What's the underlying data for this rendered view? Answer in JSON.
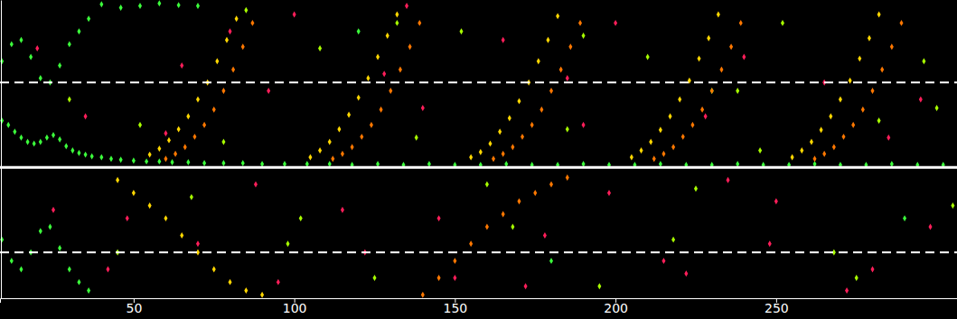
{
  "chart_data": {
    "type": "scatter",
    "xlim": [
      8.4,
      306.3
    ],
    "ylim": [
      -1.54,
      1.97
    ],
    "xticks": [
      50,
      100,
      150,
      200,
      250
    ],
    "yticks": [],
    "tick_labels": "x",
    "series": [
      {
        "color": "#3cff3c",
        "marker": "diamond",
        "x": [
          9,
          11,
          13,
          15,
          17,
          19,
          21,
          23,
          25,
          27,
          29,
          31,
          33,
          35,
          37,
          40,
          43,
          46,
          50,
          54,
          58,
          62,
          67,
          72,
          78,
          84,
          90,
          97,
          104,
          111,
          118,
          126,
          134,
          142,
          150,
          158,
          166,
          174,
          182,
          190,
          198,
          206,
          214,
          222,
          230,
          238,
          246,
          254,
          262,
          270,
          278,
          286,
          294,
          302,
          9,
          12,
          15,
          18,
          21,
          24,
          27,
          30,
          33,
          36,
          9,
          12,
          15,
          18,
          21,
          24,
          27,
          30,
          33,
          36,
          40,
          46,
          52,
          58,
          64,
          70,
          120,
          180,
          230,
          290
        ],
        "values": [
          0.55,
          0.5,
          0.42,
          0.35,
          0.3,
          0.28,
          0.3,
          0.35,
          0.38,
          0.33,
          0.25,
          0.2,
          0.17,
          0.15,
          0.13,
          0.12,
          0.1,
          0.09,
          0.08,
          0.07,
          0.07,
          0.06,
          0.06,
          0.05,
          0.05,
          0.05,
          0.04,
          0.04,
          0.04,
          0.04,
          0.03,
          0.04,
          0.03,
          0.04,
          0.03,
          0.03,
          0.04,
          0.03,
          0.03,
          0.04,
          0.03,
          0.03,
          0.04,
          0.03,
          0.03,
          0.04,
          0.03,
          0.03,
          0.04,
          0.03,
          0.03,
          0.04,
          0.03,
          0.03,
          1.25,
          1.45,
          1.5,
          1.3,
          1.05,
          1.0,
          1.2,
          1.45,
          1.6,
          1.75,
          -0.85,
          -1.1,
          -1.2,
          -1.0,
          -0.75,
          -0.7,
          -0.95,
          -1.2,
          -1.35,
          -1.45,
          1.92,
          1.88,
          1.9,
          1.93,
          1.91,
          1.9,
          1.6,
          -1.1,
          0.9,
          -0.6
        ]
      },
      {
        "color": "#ffd700",
        "marker": "diamond",
        "x": [
          55,
          58,
          61,
          64,
          67,
          70,
          73,
          76,
          79,
          82,
          105,
          108,
          111,
          114,
          117,
          120,
          123,
          126,
          129,
          132,
          155,
          158,
          161,
          164,
          167,
          170,
          173,
          176,
          179,
          182,
          205,
          208,
          211,
          214,
          217,
          220,
          223,
          226,
          229,
          232,
          255,
          258,
          261,
          264,
          267,
          270,
          273,
          276,
          279,
          282,
          45,
          50,
          55,
          60,
          65,
          70,
          75,
          80,
          85,
          90
        ],
        "values": [
          0.15,
          0.22,
          0.32,
          0.45,
          0.6,
          0.8,
          1.0,
          1.25,
          1.5,
          1.75,
          0.12,
          0.2,
          0.3,
          0.45,
          0.62,
          0.82,
          1.05,
          1.3,
          1.55,
          1.8,
          0.12,
          0.18,
          0.28,
          0.42,
          0.58,
          0.78,
          1.0,
          1.25,
          1.5,
          1.78,
          0.12,
          0.2,
          0.3,
          0.44,
          0.6,
          0.8,
          1.02,
          1.28,
          1.52,
          1.8,
          0.12,
          0.2,
          0.3,
          0.44,
          0.6,
          0.8,
          1.02,
          1.28,
          1.52,
          1.8,
          -0.15,
          -0.3,
          -0.45,
          -0.6,
          -0.8,
          -1.0,
          -1.2,
          -1.35,
          -1.45,
          -1.5
        ]
      },
      {
        "color": "#ff7800",
        "marker": "diamond",
        "x": [
          60,
          63,
          66,
          69,
          72,
          75,
          78,
          81,
          84,
          87,
          112,
          115,
          118,
          121,
          124,
          127,
          130,
          133,
          136,
          139,
          162,
          165,
          168,
          171,
          174,
          177,
          180,
          183,
          186,
          189,
          212,
          215,
          218,
          221,
          224,
          227,
          230,
          233,
          236,
          239,
          262,
          265,
          268,
          271,
          274,
          277,
          280,
          283,
          286,
          289,
          140,
          145,
          150,
          155,
          160,
          165,
          170,
          175,
          180,
          185
        ],
        "values": [
          0.1,
          0.16,
          0.24,
          0.36,
          0.5,
          0.68,
          0.9,
          1.15,
          1.42,
          1.7,
          0.1,
          0.16,
          0.24,
          0.36,
          0.5,
          0.68,
          0.9,
          1.15,
          1.42,
          1.7,
          0.1,
          0.16,
          0.24,
          0.36,
          0.5,
          0.68,
          0.9,
          1.15,
          1.42,
          1.7,
          0.1,
          0.16,
          0.24,
          0.36,
          0.5,
          0.68,
          0.9,
          1.15,
          1.42,
          1.7,
          0.1,
          0.16,
          0.24,
          0.36,
          0.5,
          0.68,
          0.9,
          1.15,
          1.42,
          1.7,
          -1.5,
          -1.3,
          -1.1,
          -0.9,
          -0.7,
          -0.55,
          -0.4,
          -0.3,
          -0.2,
          -0.12
        ]
      },
      {
        "color": "#ff1e5a",
        "marker": "diamond",
        "x": [
          20,
          35,
          48,
          65,
          80,
          92,
          100,
          115,
          128,
          140,
          150,
          165,
          178,
          190,
          200,
          215,
          228,
          240,
          250,
          265,
          280,
          295,
          25,
          42,
          70,
          95,
          122,
          145,
          172,
          198,
          222,
          248,
          272,
          298,
          60,
          88,
          135,
          185,
          235,
          285
        ],
        "values": [
          1.4,
          0.6,
          -0.6,
          1.2,
          1.6,
          0.9,
          1.8,
          -0.5,
          1.1,
          0.7,
          -1.3,
          1.5,
          -0.8,
          0.5,
          1.7,
          -1.1,
          0.6,
          1.3,
          -0.4,
          1.0,
          -1.2,
          0.8,
          -0.5,
          -1.2,
          -0.9,
          -1.35,
          -1.0,
          -0.6,
          -1.4,
          -0.3,
          -1.25,
          -0.9,
          -1.45,
          -0.7,
          0.4,
          -0.2,
          1.9,
          1.05,
          -0.15,
          0.35
        ]
      },
      {
        "color": "#a8ff00",
        "marker": "diamond",
        "x": [
          30,
          52,
          68,
          85,
          98,
          108,
          125,
          138,
          152,
          168,
          185,
          195,
          210,
          225,
          238,
          252,
          268,
          282,
          296,
          305,
          45,
          78,
          102,
          132,
          160,
          190,
          218,
          245,
          275,
          300
        ],
        "values": [
          0.8,
          0.5,
          -0.35,
          1.85,
          -0.9,
          1.4,
          -1.3,
          0.35,
          1.6,
          -0.7,
          0.45,
          -1.4,
          1.3,
          -0.25,
          0.9,
          1.7,
          -1.0,
          0.55,
          1.25,
          -0.45,
          -1.0,
          0.3,
          -0.6,
          1.7,
          -0.2,
          1.55,
          -0.85,
          0.2,
          -1.3,
          0.7
        ]
      },
      {
        "type": "line",
        "color": "#ffffff",
        "line_style": "solid",
        "x": [
          8.4,
          306.3
        ],
        "values": [
          0,
          0
        ]
      },
      {
        "type": "line",
        "color": "#ffffff",
        "line_style": "dashed",
        "x": [
          8.4,
          306.3
        ],
        "values": [
          1,
          1
        ]
      },
      {
        "type": "line",
        "color": "#ffffff",
        "line_style": "dashed",
        "x": [
          8.4,
          306.3
        ],
        "values": [
          -1,
          -1
        ]
      }
    ]
  }
}
